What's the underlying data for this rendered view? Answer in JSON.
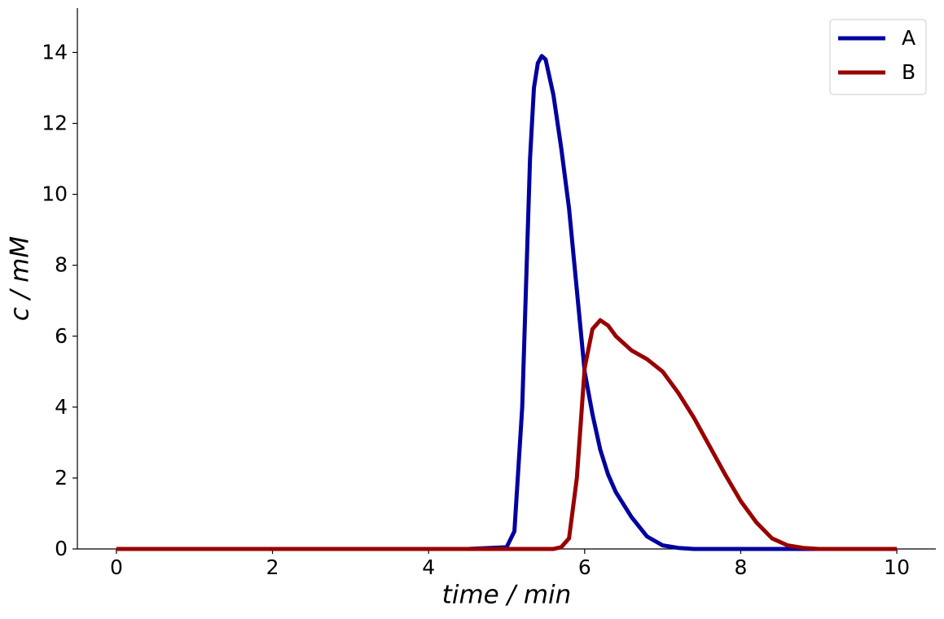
{
  "chart_data": {
    "type": "line",
    "x_label": "time / min",
    "y_label": "c / mM",
    "x": [
      0,
      1,
      2,
      3,
      4,
      4.5,
      5.0,
      5.1,
      5.2,
      5.25,
      5.3,
      5.35,
      5.4,
      5.45,
      5.5,
      5.6,
      5.7,
      5.8,
      5.9,
      6.0,
      6.1,
      6.2,
      6.3,
      6.4,
      6.6,
      6.8,
      7.0,
      7.2,
      7.4,
      7.6,
      7.8,
      8.0,
      8.2,
      8.4,
      8.6,
      8.8,
      9.0,
      9.5,
      10
    ],
    "series": [
      {
        "name": "A",
        "color": "#0000a0",
        "values": [
          0,
          0,
          0,
          0,
          0,
          0,
          0.05,
          0.5,
          4,
          7.5,
          11,
          13,
          13.7,
          13.9,
          13.8,
          12.8,
          11.3,
          9.6,
          7.3,
          5.0,
          3.8,
          2.8,
          2.1,
          1.6,
          0.9,
          0.35,
          0.1,
          0.03,
          0,
          0,
          0,
          0,
          0,
          0,
          0,
          0,
          0,
          0,
          0
        ]
      },
      {
        "name": "B",
        "color": "#990000",
        "values": [
          0,
          0,
          0,
          0,
          0,
          0,
          0,
          0,
          0,
          0,
          0,
          0,
          0,
          0,
          0,
          0,
          0.05,
          0.3,
          2.0,
          5.1,
          6.2,
          6.45,
          6.3,
          6.0,
          5.6,
          5.35,
          5.0,
          4.4,
          3.7,
          2.9,
          2.1,
          1.35,
          0.75,
          0.3,
          0.1,
          0.03,
          0,
          0,
          0
        ]
      }
    ],
    "xlim": [
      -0.5,
      10.5
    ],
    "ylim": [
      0,
      15.25
    ],
    "xticks": [
      0,
      2,
      4,
      6,
      8,
      10
    ],
    "yticks": [
      0,
      2,
      4,
      6,
      8,
      10,
      12,
      14
    ],
    "legend": "upper right"
  }
}
